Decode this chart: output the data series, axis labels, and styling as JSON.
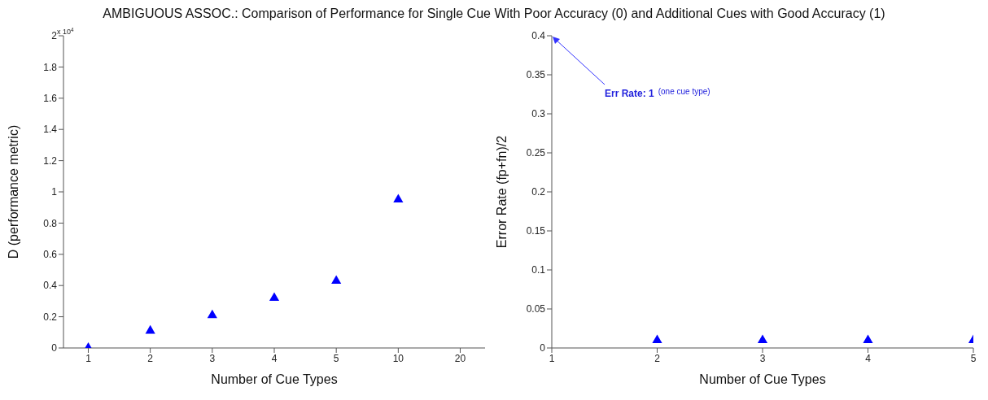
{
  "chart_data": [
    {
      "type": "scatter",
      "title": "AMBIGUOUS ASSOC.: Comparison of Performance for Single Cue With Poor Accuracy (0) and Additional Cues with Good Accuracy (1)",
      "xlabel": "Number of Cue Types",
      "ylabel": "D (performance metric)",
      "categories": [
        "1",
        "2",
        "3",
        "4",
        "5",
        "10",
        "20"
      ],
      "series": [
        {
          "color": "#0000ff",
          "values": [
            0,
            0.11,
            0.21,
            0.32,
            0.43,
            0.95,
            null
          ]
        }
      ],
      "marker": "triangle",
      "ylim": [
        0,
        2
      ],
      "yticks": [
        0,
        0.2,
        0.4,
        0.6,
        0.8,
        1,
        1.2,
        1.4,
        1.6,
        1.8,
        2
      ],
      "annotations": [
        "x 10$^{4}$"
      ]
    },
    {
      "type": "scatter",
      "xlabel": "Number of Cue Types",
      "ylabel": "Error Rate (fp+fn)/2",
      "x": [
        2,
        3,
        4,
        5
      ],
      "series": [
        {
          "color": "#0000ff",
          "values": [
            0.01,
            0.01,
            0.01,
            0.01
          ]
        }
      ],
      "marker": "triangle",
      "xlim": [
        1,
        5
      ],
      "xticks": [
        1,
        2,
        3,
        4,
        5
      ],
      "ylim": [
        0,
        0.4
      ],
      "yticks": [
        0,
        0.05,
        0.1,
        0.15,
        0.2,
        0.25,
        0.3,
        0.35,
        0.4
      ],
      "annotations": [
        "Err Rate: 1",
        "(one cue type)"
      ]
    }
  ]
}
